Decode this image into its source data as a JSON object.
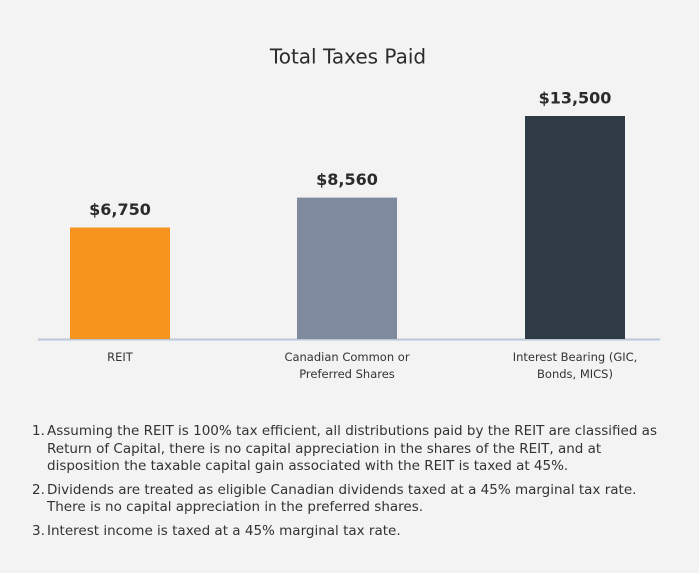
{
  "chart_data": {
    "type": "bar",
    "title": "Total Taxes Paid",
    "categories": [
      "REIT",
      "Canadian Common or Preferred Shares",
      "Interest Bearing (GIC, Bonds, MICS)"
    ],
    "values": [
      6750,
      8560,
      13500
    ],
    "value_labels": [
      "$6,750",
      "$8,560",
      "$13,500"
    ],
    "colors": [
      "#f7941d",
      "#7f8a9e",
      "#2f3a44"
    ]
  },
  "notes": [
    {
      "number": "1.",
      "text": "Assuming the REIT is 100% tax efficient, all distributions paid by the REIT are classified as Return of Capital, there is no capital appreciation in the shares of the REIT, and at disposition the taxable capital gain associated with the REIT is taxed at 45%."
    },
    {
      "number": "2.",
      "text": "Dividends are treated as eligible Canadian dividends taxed at a 45% marginal tax rate. There is no capital appreciation in the preferred shares."
    },
    {
      "number": "3.",
      "text": "Interest income is taxed at a 45% marginal tax rate."
    }
  ]
}
